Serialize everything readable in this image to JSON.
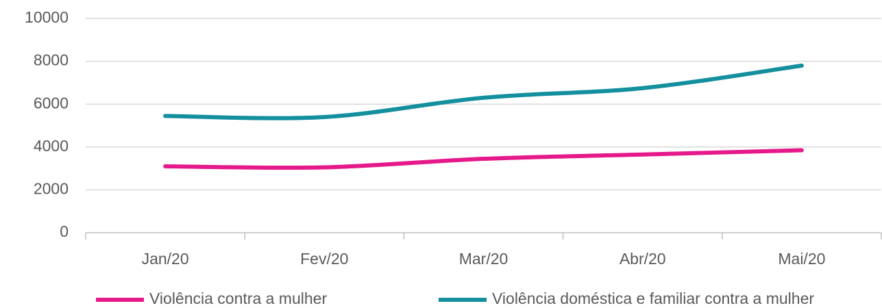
{
  "chart_data": {
    "type": "line",
    "categories": [
      "Jan/20",
      "Fev/20",
      "Mar/20",
      "Abr/20",
      "Mai/20"
    ],
    "series": [
      {
        "name": "Violência contra a mulher",
        "color": "#e6198a",
        "values": [
          3100,
          3050,
          3450,
          3650,
          3850
        ]
      },
      {
        "name": "Violência doméstica e familiar contra a mulher",
        "color": "#138f9e",
        "values": [
          5450,
          5400,
          6300,
          6750,
          7800
        ]
      }
    ],
    "ylim": [
      0,
      10000
    ],
    "yticks": [
      0,
      2000,
      4000,
      6000,
      8000,
      10000
    ],
    "grid": true,
    "legend": "bottom"
  }
}
